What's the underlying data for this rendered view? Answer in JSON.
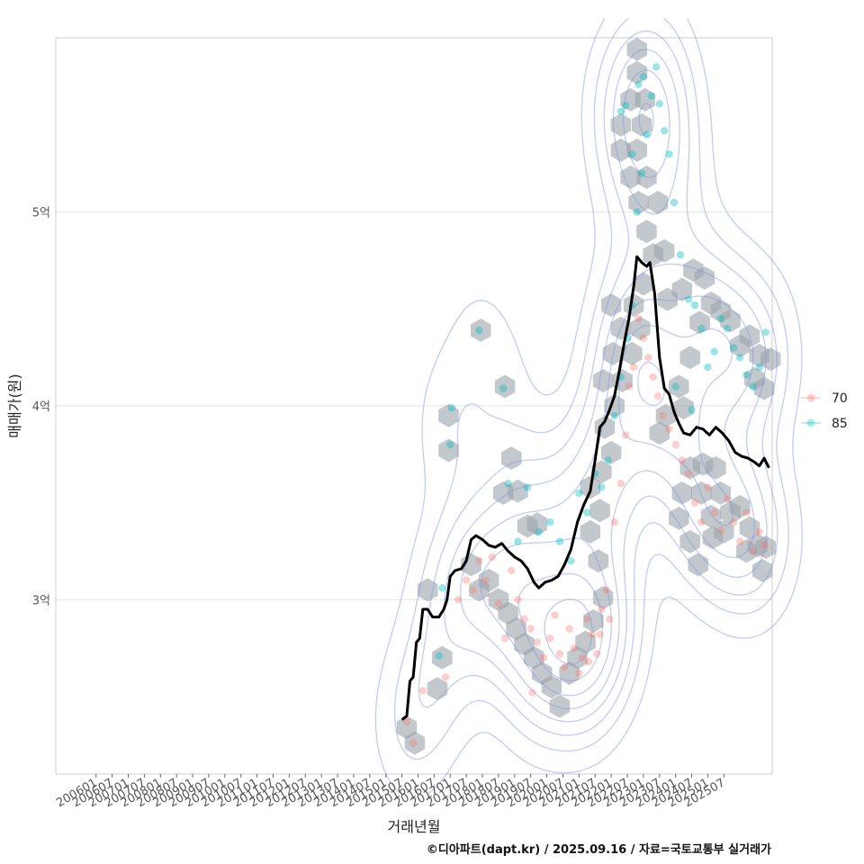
{
  "chart_data": {
    "type": "scatter",
    "title": "",
    "xlabel": "거래년월",
    "ylabel": "매매가(원)",
    "caption": "©디아파트(dapt.kr) / 2025.09.16 / 자료=국토교통부 실거래가",
    "x_ticks": [
      "200601",
      "200607",
      "200701",
      "200707",
      "200801",
      "200807",
      "200901",
      "200907",
      "201001",
      "201007",
      "201101",
      "201107",
      "201201",
      "201207",
      "201301",
      "201307",
      "201401",
      "201407",
      "201501",
      "201507",
      "201601",
      "201607",
      "201701",
      "201707",
      "201801",
      "201807",
      "201901",
      "201907",
      "202001",
      "202007",
      "202101",
      "202107",
      "202201",
      "202207",
      "202301",
      "202307",
      "202401",
      "202407",
      "202501",
      "202507"
    ],
    "y_ticks": [
      {
        "label": "3억",
        "value": 300000000
      },
      {
        "label": "4억",
        "value": 400000000
      },
      {
        "label": "5억",
        "value": 500000000
      }
    ],
    "ylim": [
      210000000,
      590000000
    ],
    "xlim_index": [
      -2.5,
      42.0
    ],
    "grid": true,
    "legend": {
      "position": "right",
      "entries": [
        {
          "label": "70",
          "color": "#F8766D"
        },
        {
          "label": "85",
          "color": "#00BFC4"
        }
      ]
    },
    "colors": {
      "trend_line": "#000000",
      "hexbin": "#9BA3AA",
      "contour": "#7F95E6",
      "grid": "#e3e3e3"
    },
    "trend_line": [
      [
        19.0,
        238000000
      ],
      [
        19.3,
        240000000
      ],
      [
        19.5,
        258000000
      ],
      [
        19.7,
        260000000
      ],
      [
        19.9,
        278000000
      ],
      [
        20.1,
        280000000
      ],
      [
        20.3,
        295000000
      ],
      [
        20.6,
        295000000
      ],
      [
        20.9,
        291000000
      ],
      [
        21.3,
        291000000
      ],
      [
        21.6,
        295000000
      ],
      [
        21.8,
        300000000
      ],
      [
        22.0,
        312000000
      ],
      [
        22.3,
        315000000
      ],
      [
        22.7,
        316000000
      ],
      [
        23.0,
        320000000
      ],
      [
        23.3,
        331000000
      ],
      [
        23.6,
        333000000
      ],
      [
        24.0,
        331000000
      ],
      [
        24.4,
        328000000
      ],
      [
        24.8,
        327000000
      ],
      [
        25.2,
        329000000
      ],
      [
        25.6,
        325000000
      ],
      [
        26.0,
        322000000
      ],
      [
        26.4,
        320000000
      ],
      [
        26.8,
        316000000
      ],
      [
        27.2,
        309000000
      ],
      [
        27.5,
        306000000
      ],
      [
        27.9,
        309000000
      ],
      [
        28.3,
        310000000
      ],
      [
        28.7,
        312000000
      ],
      [
        29.1,
        318000000
      ],
      [
        29.5,
        326000000
      ],
      [
        29.9,
        340000000
      ],
      [
        30.3,
        349000000
      ],
      [
        30.7,
        356000000
      ],
      [
        31.0,
        372000000
      ],
      [
        31.3,
        389000000
      ],
      [
        31.6,
        392000000
      ],
      [
        31.9,
        398000000
      ],
      [
        32.2,
        405000000
      ],
      [
        32.5,
        418000000
      ],
      [
        32.8,
        432000000
      ],
      [
        33.1,
        445000000
      ],
      [
        33.4,
        462000000
      ],
      [
        33.6,
        477000000
      ],
      [
        33.9,
        474000000
      ],
      [
        34.2,
        472000000
      ],
      [
        34.4,
        474000000
      ],
      [
        34.7,
        458000000
      ],
      [
        35.0,
        425000000
      ],
      [
        35.3,
        409000000
      ],
      [
        35.6,
        406000000
      ],
      [
        35.9,
        397000000
      ],
      [
        36.2,
        391000000
      ],
      [
        36.5,
        386000000
      ],
      [
        36.9,
        385000000
      ],
      [
        37.3,
        389000000
      ],
      [
        37.7,
        388000000
      ],
      [
        38.1,
        385000000
      ],
      [
        38.5,
        389000000
      ],
      [
        38.9,
        386000000
      ],
      [
        39.3,
        382000000
      ],
      [
        39.7,
        376000000
      ],
      [
        40.1,
        374000000
      ],
      [
        40.5,
        373000000
      ],
      [
        40.9,
        371000000
      ],
      [
        41.2,
        369000000
      ],
      [
        41.5,
        373000000
      ],
      [
        41.8,
        368000000
      ]
    ],
    "points_70": [
      [
        19.3,
        237000000
      ],
      [
        19.7,
        226000000
      ],
      [
        20.3,
        253000000
      ],
      [
        21.7,
        260000000
      ],
      [
        22.5,
        300000000
      ],
      [
        23.0,
        310000000
      ],
      [
        23.4,
        305000000
      ],
      [
        23.8,
        320000000
      ],
      [
        24.2,
        310000000
      ],
      [
        24.6,
        322000000
      ],
      [
        25.0,
        298000000
      ],
      [
        25.4,
        280000000
      ],
      [
        25.8,
        315000000
      ],
      [
        26.2,
        300000000
      ],
      [
        26.6,
        290000000
      ],
      [
        27.0,
        285000000
      ],
      [
        27.4,
        278000000
      ],
      [
        27.8,
        270000000
      ],
      [
        28.2,
        280000000
      ],
      [
        28.5,
        292000000
      ],
      [
        28.8,
        272000000
      ],
      [
        29.1,
        265000000
      ],
      [
        29.4,
        285000000
      ],
      [
        29.7,
        275000000
      ],
      [
        30.0,
        262000000
      ],
      [
        30.2,
        270000000
      ],
      [
        30.5,
        290000000
      ],
      [
        30.8,
        282000000
      ],
      [
        31.1,
        272000000
      ],
      [
        31.4,
        295000000
      ],
      [
        31.7,
        305000000
      ],
      [
        31.9,
        290000000
      ],
      [
        32.2,
        340000000
      ],
      [
        32.6,
        360000000
      ],
      [
        32.9,
        385000000
      ],
      [
        33.1,
        410000000
      ],
      [
        33.4,
        420000000
      ],
      [
        33.7,
        445000000
      ],
      [
        34.0,
        435000000
      ],
      [
        34.3,
        425000000
      ],
      [
        34.6,
        415000000
      ],
      [
        34.9,
        405000000
      ],
      [
        35.2,
        395000000
      ],
      [
        35.6,
        388000000
      ],
      [
        36.0,
        380000000
      ],
      [
        36.4,
        372000000
      ],
      [
        36.8,
        365000000
      ],
      [
        37.2,
        350000000
      ],
      [
        37.6,
        340000000
      ],
      [
        38.0,
        358000000
      ],
      [
        38.4,
        345000000
      ],
      [
        38.8,
        336000000
      ],
      [
        39.2,
        352000000
      ],
      [
        39.6,
        340000000
      ],
      [
        40.0,
        330000000
      ],
      [
        40.4,
        345000000
      ],
      [
        40.8,
        325000000
      ],
      [
        41.2,
        335000000
      ],
      [
        41.5,
        328000000
      ],
      [
        30.6,
        268000000
      ],
      [
        31.3,
        282000000
      ],
      [
        27.1,
        252000000
      ]
    ],
    "points_85": [
      [
        21.3,
        271000000
      ],
      [
        21.5,
        306000000
      ],
      [
        22.0,
        380000000
      ],
      [
        22.1,
        399000000
      ],
      [
        23.8,
        439000000
      ],
      [
        25.3,
        409000000
      ],
      [
        25.6,
        360000000
      ],
      [
        26.2,
        330000000
      ],
      [
        26.8,
        358000000
      ],
      [
        27.5,
        335000000
      ],
      [
        28.2,
        340000000
      ],
      [
        28.8,
        330000000
      ],
      [
        29.5,
        320000000
      ],
      [
        30.0,
        355000000
      ],
      [
        30.5,
        345000000
      ],
      [
        31.0,
        365000000
      ],
      [
        31.4,
        358000000
      ],
      [
        31.8,
        372000000
      ],
      [
        32.2,
        395000000
      ],
      [
        32.6,
        415000000
      ],
      [
        33.0,
        435000000
      ],
      [
        33.3,
        452000000
      ],
      [
        33.6,
        500000000
      ],
      [
        33.9,
        520000000
      ],
      [
        34.2,
        540000000
      ],
      [
        34.5,
        560000000
      ],
      [
        34.8,
        575000000
      ],
      [
        35.0,
        556000000
      ],
      [
        35.3,
        542000000
      ],
      [
        35.6,
        530000000
      ],
      [
        35.9,
        505000000
      ],
      [
        36.3,
        478000000
      ],
      [
        36.8,
        455000000
      ],
      [
        37.2,
        452000000
      ],
      [
        37.6,
        440000000
      ],
      [
        38.0,
        420000000
      ],
      [
        38.4,
        428000000
      ],
      [
        38.8,
        445000000
      ],
      [
        39.2,
        440000000
      ],
      [
        39.6,
        430000000
      ],
      [
        40.0,
        425000000
      ],
      [
        40.4,
        416000000
      ],
      [
        40.8,
        410000000
      ],
      [
        41.2,
        420000000
      ],
      [
        41.6,
        438000000
      ],
      [
        37.0,
        398000000
      ],
      [
        36.0,
        410000000
      ],
      [
        34.0,
        570000000
      ],
      [
        33.7,
        566000000
      ],
      [
        33.3,
        530000000
      ],
      [
        32.9,
        555000000
      ],
      [
        32.6,
        552000000
      ]
    ],
    "hexbins": [
      [
        19.3,
        234000000
      ],
      [
        19.8,
        226000000
      ],
      [
        20.6,
        305000000
      ],
      [
        21.2,
        254000000
      ],
      [
        21.5,
        270000000
      ],
      [
        21.9,
        377000000
      ],
      [
        21.9,
        395000000
      ],
      [
        23.9,
        439000000
      ],
      [
        25.4,
        410000000
      ],
      [
        25.8,
        373000000
      ],
      [
        25.3,
        355000000
      ],
      [
        26.2,
        356000000
      ],
      [
        26.8,
        338000000
      ],
      [
        27.4,
        339000000
      ],
      [
        23.3,
        318000000
      ],
      [
        23.8,
        305000000
      ],
      [
        24.4,
        310000000
      ],
      [
        25.0,
        300000000
      ],
      [
        25.6,
        293000000
      ],
      [
        26.1,
        285000000
      ],
      [
        26.6,
        277000000
      ],
      [
        27.2,
        270000000
      ],
      [
        27.7,
        262000000
      ],
      [
        28.3,
        255000000
      ],
      [
        28.8,
        245000000
      ],
      [
        29.4,
        262000000
      ],
      [
        29.9,
        270000000
      ],
      [
        30.4,
        278000000
      ],
      [
        30.9,
        289000000
      ],
      [
        31.5,
        301000000
      ],
      [
        31.2,
        320000000
      ],
      [
        30.7,
        335000000
      ],
      [
        31.3,
        346000000
      ],
      [
        30.7,
        358000000
      ],
      [
        31.4,
        366000000
      ],
      [
        32.0,
        376000000
      ],
      [
        31.6,
        389000000
      ],
      [
        32.2,
        400000000
      ],
      [
        31.5,
        413000000
      ],
      [
        32.7,
        413000000
      ],
      [
        32.1,
        427000000
      ],
      [
        33.3,
        427000000
      ],
      [
        32.6,
        440000000
      ],
      [
        33.8,
        440000000
      ],
      [
        32.0,
        452000000
      ],
      [
        33.4,
        452000000
      ],
      [
        34.0,
        463000000
      ],
      [
        34.6,
        478000000
      ],
      [
        35.3,
        480000000
      ],
      [
        34.2,
        490000000
      ],
      [
        33.7,
        505000000
      ],
      [
        34.9,
        505000000
      ],
      [
        33.2,
        518000000
      ],
      [
        34.2,
        518000000
      ],
      [
        32.6,
        532000000
      ],
      [
        33.6,
        532000000
      ],
      [
        32.6,
        545000000
      ],
      [
        33.9,
        545000000
      ],
      [
        33.2,
        558000000
      ],
      [
        34.1,
        558000000
      ],
      [
        33.6,
        572000000
      ],
      [
        33.6,
        584000000
      ],
      [
        35.5,
        455000000
      ],
      [
        36.4,
        460000000
      ],
      [
        37.1,
        470000000
      ],
      [
        37.8,
        466000000
      ],
      [
        38.2,
        453000000
      ],
      [
        38.8,
        449000000
      ],
      [
        37.5,
        443000000
      ],
      [
        39.4,
        444000000
      ],
      [
        40.0,
        431000000
      ],
      [
        40.6,
        436000000
      ],
      [
        41.2,
        426000000
      ],
      [
        41.9,
        424000000
      ],
      [
        40.9,
        414000000
      ],
      [
        41.5,
        409000000
      ],
      [
        36.9,
        425000000
      ],
      [
        36.2,
        410000000
      ],
      [
        35.4,
        395000000
      ],
      [
        36.5,
        399000000
      ],
      [
        35.0,
        386000000
      ],
      [
        36.9,
        368000000
      ],
      [
        36.4,
        355000000
      ],
      [
        37.6,
        355000000
      ],
      [
        38.2,
        343000000
      ],
      [
        38.8,
        355000000
      ],
      [
        39.4,
        345000000
      ],
      [
        40.0,
        348000000
      ],
      [
        40.6,
        337000000
      ],
      [
        41.1,
        328000000
      ],
      [
        41.6,
        327000000
      ],
      [
        41.4,
        315000000
      ],
      [
        36.9,
        330000000
      ],
      [
        37.4,
        318000000
      ],
      [
        36.2,
        342000000
      ],
      [
        37.7,
        370000000
      ],
      [
        38.5,
        368000000
      ],
      [
        39.0,
        335000000
      ],
      [
        40.4,
        325000000
      ],
      [
        38.3,
        332000000
      ]
    ]
  }
}
